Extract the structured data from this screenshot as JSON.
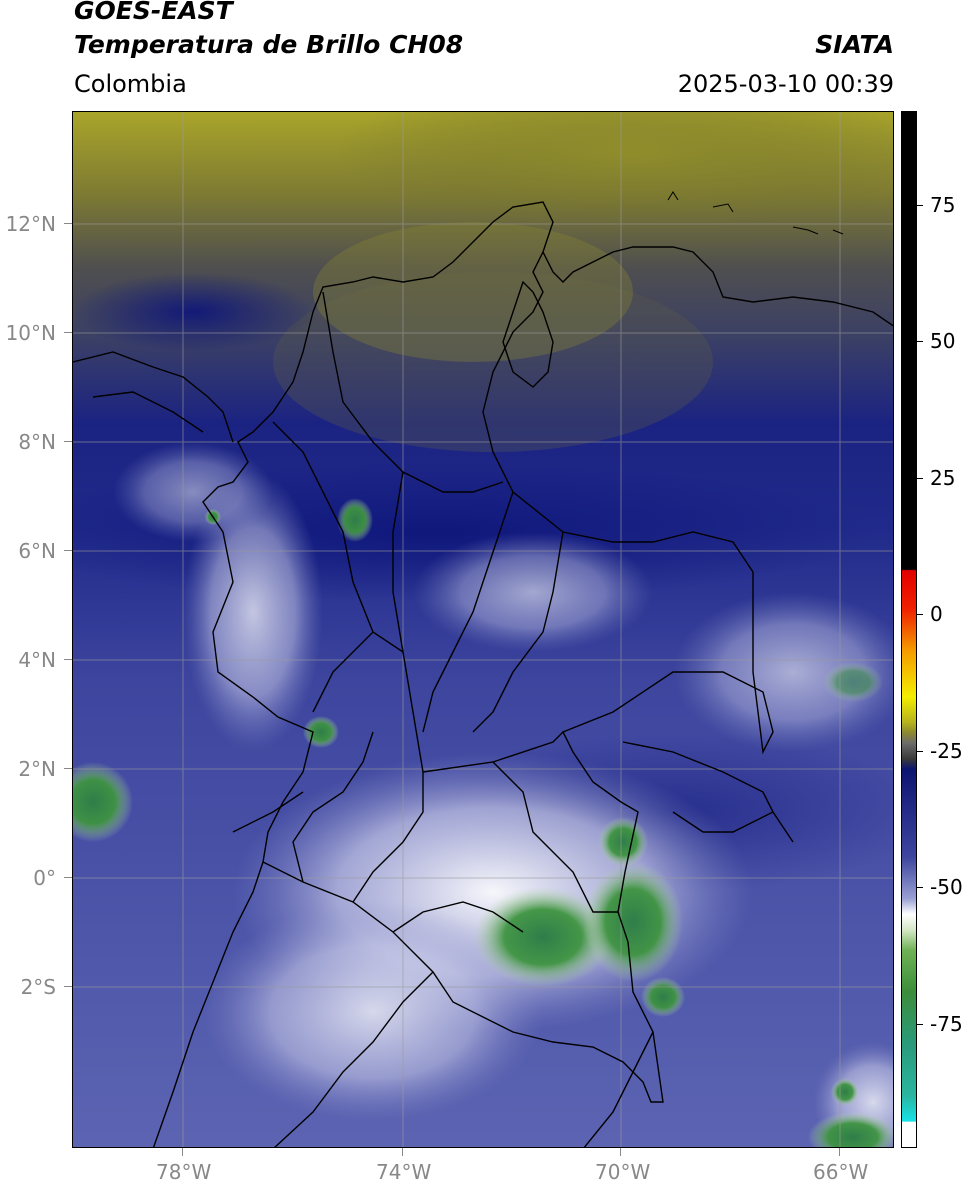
{
  "header": {
    "title_line1": "GOES-EAST",
    "title_line2": "Temperatura de Brillo CH08",
    "organization": "SIATA",
    "region": "Colombia",
    "timestamp": "2025-03-10 00:39"
  },
  "axes": {
    "lat_labels": [
      "12°N",
      "10°N",
      "8°N",
      "6°N",
      "4°N",
      "2°N",
      "0°",
      "2°S"
    ],
    "lon_labels": [
      "78°W",
      "74°W",
      "70°W",
      "66°W"
    ]
  },
  "colorbar": {
    "tick_labels": [
      "75",
      "50",
      "25",
      "0",
      "-25",
      "-50",
      "-75"
    ],
    "colors": {
      "dark_navy": "#0b1470",
      "blue": "#343c9c",
      "lavender": "#c9cbe8",
      "white": "#ffffff",
      "green": "#3c8d3b",
      "teal": "#2ab5a0",
      "cyan": "#18e2e6",
      "olive": "#b5b21e",
      "gray": "#5a5a5a",
      "yellow": "#f3ee00",
      "orange": "#f59a00",
      "red": "#f30000",
      "black": "#000000"
    }
  }
}
